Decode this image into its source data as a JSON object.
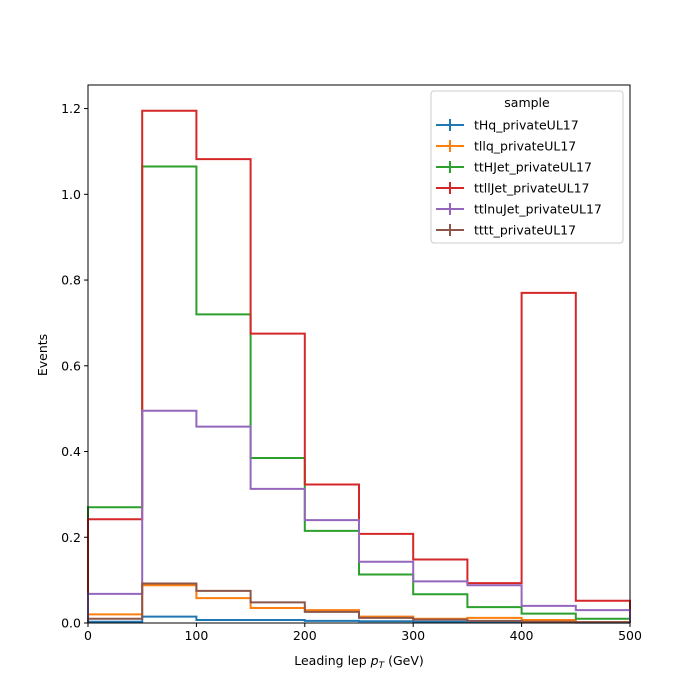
{
  "chart_data": {
    "type": "line",
    "drawstyle": "step",
    "title": "",
    "xlabel_prefix": "Leading lep ",
    "xlabel_var": "p",
    "xlabel_sub": "T",
    "xlabel_suffix": " (GeV)",
    "ylabel": "Events",
    "xlim": [
      0,
      500
    ],
    "ylim": [
      0,
      1.255
    ],
    "bin_edges": [
      0,
      50,
      100,
      150,
      200,
      250,
      300,
      350,
      400,
      450,
      500
    ],
    "xticks": [
      {
        "v": 0,
        "label": "0"
      },
      {
        "v": 100,
        "label": "100"
      },
      {
        "v": 200,
        "label": "200"
      },
      {
        "v": 300,
        "label": "300"
      },
      {
        "v": 400,
        "label": "400"
      },
      {
        "v": 500,
        "label": "500"
      }
    ],
    "yticks": [
      {
        "v": 0.0,
        "label": "0.0"
      },
      {
        "v": 0.2,
        "label": "0.2"
      },
      {
        "v": 0.4,
        "label": "0.4"
      },
      {
        "v": 0.6,
        "label": "0.6"
      },
      {
        "v": 0.8,
        "label": "0.8"
      },
      {
        "v": 1.0,
        "label": "1.0"
      },
      {
        "v": 1.2,
        "label": "1.2"
      }
    ],
    "grid": false,
    "legend": {
      "title": "sample",
      "placement": "top-right"
    },
    "series": [
      {
        "name": "tHq_privateUL17",
        "color": "#1f77b4",
        "values": [
          0.003,
          0.015,
          0.007,
          0.007,
          0.005,
          0.004,
          0.003,
          0.002,
          0.002,
          0.001
        ]
      },
      {
        "name": "tllq_privateUL17",
        "color": "#ff7f0e",
        "values": [
          0.02,
          0.088,
          0.058,
          0.035,
          0.03,
          0.015,
          0.01,
          0.012,
          0.007,
          0.002
        ]
      },
      {
        "name": "ttHJet_privateUL17",
        "color": "#2ca02c",
        "values": [
          0.27,
          1.065,
          0.72,
          0.385,
          0.215,
          0.113,
          0.067,
          0.037,
          0.022,
          0.01
        ]
      },
      {
        "name": "ttllJet_privateUL17",
        "color": "#d62728",
        "values": [
          0.242,
          1.195,
          1.082,
          0.675,
          0.323,
          0.208,
          0.148,
          0.093,
          0.77,
          0.052
        ]
      },
      {
        "name": "ttlnuJet_privateUL17",
        "color": "#9467bd",
        "values": [
          0.068,
          0.495,
          0.458,
          0.313,
          0.24,
          0.143,
          0.097,
          0.088,
          0.04,
          0.03
        ]
      },
      {
        "name": "tttt_privateUL17",
        "color": "#8c564b",
        "values": [
          0.01,
          0.092,
          0.075,
          0.048,
          0.026,
          0.012,
          0.008,
          0.005,
          0.003,
          0.002
        ]
      }
    ]
  }
}
